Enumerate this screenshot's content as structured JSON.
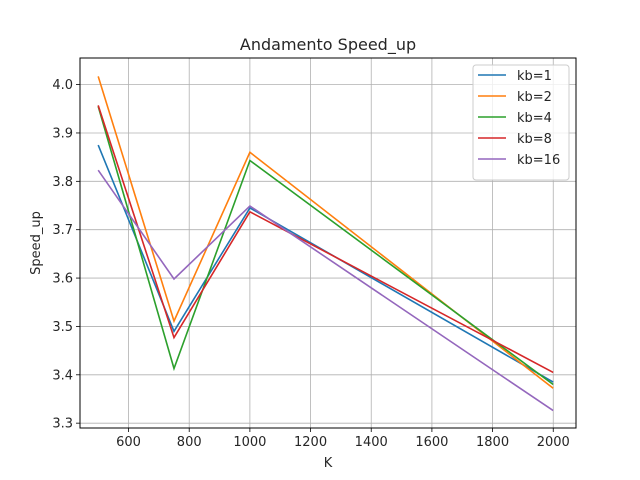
{
  "chart_data": {
    "type": "line",
    "title": "Andamento Speed_up",
    "xlabel": "K",
    "ylabel": "Speed_up",
    "x": [
      500,
      750,
      1000,
      2000
    ],
    "xlim": [
      440,
      2075
    ],
    "ylim": [
      3.29,
      4.055
    ],
    "xticks": [
      600,
      800,
      1000,
      1200,
      1400,
      1600,
      1800,
      2000
    ],
    "yticks": [
      3.3,
      3.4,
      3.5,
      3.6,
      3.7,
      3.8,
      3.9,
      4.0
    ],
    "ytick_labels": [
      "3.3",
      "3.4",
      "3.5",
      "3.6",
      "3.7",
      "3.8",
      "3.9",
      "4.0"
    ],
    "grid": true,
    "legend_position": "top-right",
    "series": [
      {
        "name": "kb=1",
        "color": "#1f77b4",
        "values": [
          3.875,
          3.49,
          3.745,
          3.385
        ]
      },
      {
        "name": "kb=2",
        "color": "#ff7f0e",
        "values": [
          4.017,
          3.511,
          3.86,
          3.372
        ]
      },
      {
        "name": "kb=4",
        "color": "#2ca02c",
        "values": [
          3.955,
          3.413,
          3.843,
          3.38
        ]
      },
      {
        "name": "kb=8",
        "color": "#d62728",
        "values": [
          3.957,
          3.477,
          3.737,
          3.405
        ]
      },
      {
        "name": "kb=16",
        "color": "#9467bd",
        "values": [
          3.823,
          3.598,
          3.749,
          3.326
        ]
      }
    ]
  }
}
